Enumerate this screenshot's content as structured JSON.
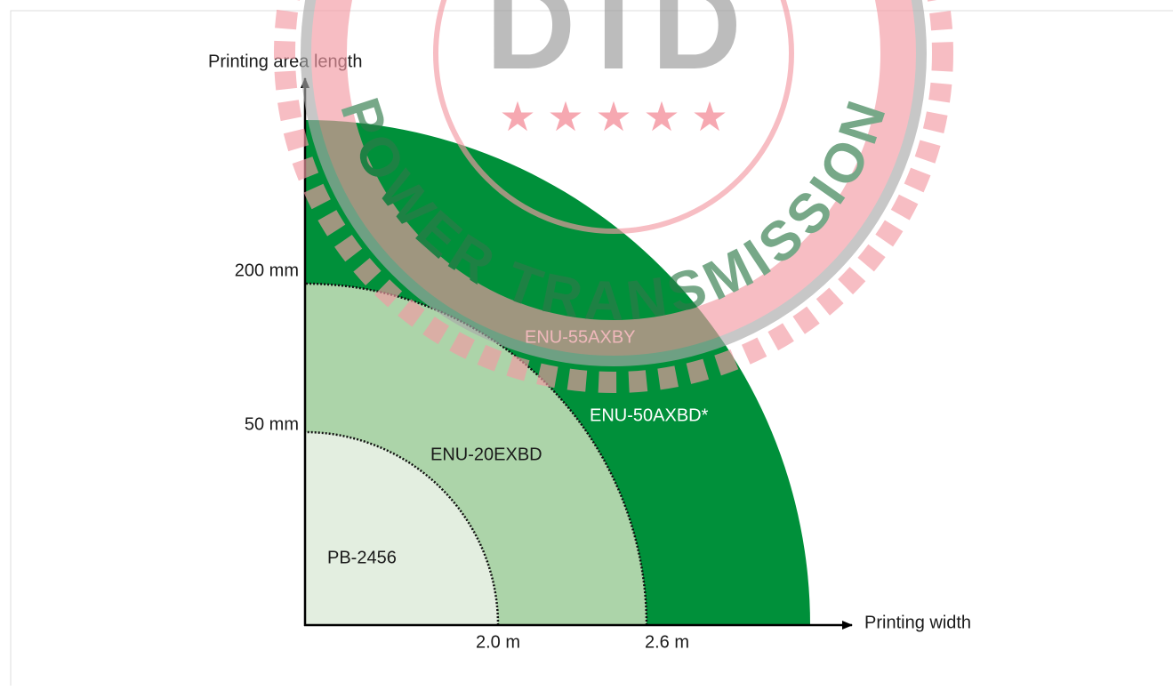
{
  "axes": {
    "y_label": "Printing area length",
    "x_label": "Printing width",
    "y_ticks": [
      "200 mm",
      "50 mm"
    ],
    "x_ticks": [
      "2.0 m",
      "2.6 m"
    ]
  },
  "regions": [
    {
      "label": "PB-2456"
    },
    {
      "label": "ENU-20EXBD"
    },
    {
      "label": "ENU-55AXBY"
    },
    {
      "label": "ENU-50AXBD*"
    }
  ],
  "watermark": {
    "logo": "DTD",
    "text": "POWER TRANSMISSION"
  }
}
